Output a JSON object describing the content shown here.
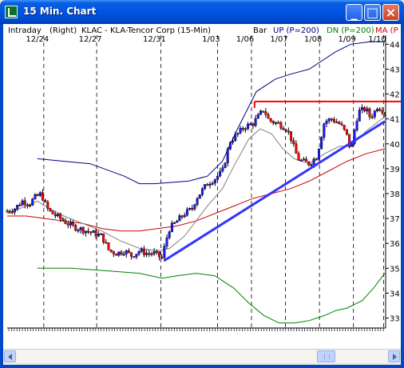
{
  "window": {
    "title": "15 Min. Chart",
    "minimize_label": "_",
    "maximize_label": "□",
    "close_label": "×"
  },
  "header": {
    "mode": "Intraday",
    "axis_side": "(Right)",
    "symbol": "KLAC - KLA-Tencor Corp (15-Min)",
    "chart_kind": "Bar",
    "up_label": "UP (P=200)",
    "dn_label": "DN (P=200)",
    "ma_label": "MA (P"
  },
  "colors": {
    "up_bar": "#1a1aff",
    "down_bar": "#ff0000",
    "upper_band": "#000080",
    "lower_band": "#008000",
    "ma": "#cc0000",
    "center": "#808080",
    "trendline": "#3333ff",
    "resistance": "#ff0000"
  },
  "chart_data": {
    "type": "candlestick",
    "date_labels": [
      "12/24",
      "12/27",
      "12/31",
      "1/03",
      "1/06",
      "1/07",
      "1/08",
      "1/09",
      "1/10"
    ],
    "y_ticks": [
      44,
      43,
      42,
      41,
      40,
      39,
      38,
      37,
      36,
      35,
      34,
      33
    ],
    "ylim": [
      32.6,
      44.3
    ],
    "x_range": [
      0,
      100
    ],
    "date_positions": [
      8,
      22,
      39,
      54,
      63,
      72,
      81,
      90,
      98
    ],
    "price_path": [
      [
        0,
        37.3
      ],
      [
        2,
        37.4
      ],
      [
        4,
        37.7
      ],
      [
        6,
        37.6
      ],
      [
        7,
        37.8
      ],
      [
        9,
        38.0
      ],
      [
        10,
        37.6
      ],
      [
        11,
        37.3
      ],
      [
        13,
        37.1
      ],
      [
        15,
        36.9
      ],
      [
        17,
        36.7
      ],
      [
        19,
        36.6
      ],
      [
        21,
        36.5
      ],
      [
        23,
        36.4
      ],
      [
        25,
        36.3
      ],
      [
        26,
        36.0
      ],
      [
        27,
        35.7
      ],
      [
        29,
        35.6
      ],
      [
        31,
        35.7
      ],
      [
        33,
        35.5
      ],
      [
        35,
        35.7
      ],
      [
        37,
        35.6
      ],
      [
        39,
        35.6
      ],
      [
        41,
        35.4
      ],
      [
        42,
        36.1
      ],
      [
        43,
        36.6
      ],
      [
        45,
        36.9
      ],
      [
        47,
        37.2
      ],
      [
        49,
        37.4
      ],
      [
        50,
        37.8
      ],
      [
        51,
        38.0
      ],
      [
        53,
        38.4
      ],
      [
        55,
        38.6
      ],
      [
        57,
        38.9
      ],
      [
        58,
        39.5
      ],
      [
        59,
        40.1
      ],
      [
        61,
        40.4
      ],
      [
        63,
        40.7
      ],
      [
        65,
        40.8
      ],
      [
        67,
        41.2
      ],
      [
        68,
        41.4
      ],
      [
        69,
        41.0
      ],
      [
        70,
        40.9
      ],
      [
        72,
        40.8
      ],
      [
        74,
        40.6
      ],
      [
        75,
        40.3
      ],
      [
        76,
        39.8
      ],
      [
        77,
        39.4
      ],
      [
        78,
        39.3
      ],
      [
        80,
        39.2
      ],
      [
        82,
        39.5
      ],
      [
        83,
        40.2
      ],
      [
        84,
        40.9
      ],
      [
        86,
        41.0
      ],
      [
        88,
        40.8
      ],
      [
        89,
        40.6
      ],
      [
        90,
        40.3
      ],
      [
        91,
        39.7
      ],
      [
        92,
        40.6
      ],
      [
        93,
        41.3
      ],
      [
        95,
        41.4
      ],
      [
        96,
        41.1
      ],
      [
        97,
        41.2
      ],
      [
        98,
        41.5
      ],
      [
        100,
        41.3
      ]
    ],
    "series": [
      {
        "name": "UP (P=200)",
        "points": [
          [
            8,
            39.4
          ],
          [
            22,
            39.2
          ],
          [
            31,
            38.7
          ],
          [
            35,
            38.4
          ],
          [
            39,
            38.4
          ],
          [
            48,
            38.5
          ],
          [
            53,
            38.7
          ],
          [
            57,
            39.3
          ],
          [
            61,
            40.6
          ],
          [
            66,
            42.1
          ],
          [
            71,
            42.6
          ],
          [
            75,
            42.8
          ],
          [
            80,
            43.0
          ],
          [
            84,
            43.4
          ],
          [
            87,
            43.7
          ],
          [
            91,
            44.0
          ],
          [
            96,
            44.1
          ],
          [
            100,
            44.1
          ]
        ]
      },
      {
        "name": "DN (P=200)",
        "points": [
          [
            8,
            35.0
          ],
          [
            17,
            35.0
          ],
          [
            26,
            34.9
          ],
          [
            35,
            34.8
          ],
          [
            41,
            34.6
          ],
          [
            45,
            34.7
          ],
          [
            50,
            34.8
          ],
          [
            55,
            34.7
          ],
          [
            60,
            34.2
          ],
          [
            64,
            33.6
          ],
          [
            68,
            33.1
          ],
          [
            72,
            32.8
          ],
          [
            76,
            32.8
          ],
          [
            80,
            32.9
          ],
          [
            84,
            33.1
          ],
          [
            87,
            33.3
          ],
          [
            90,
            33.4
          ],
          [
            94,
            33.7
          ],
          [
            97,
            34.2
          ],
          [
            100,
            34.8
          ]
        ]
      },
      {
        "name": "MA (P",
        "points": [
          [
            0,
            37.1
          ],
          [
            5,
            37.1
          ],
          [
            10,
            37.0
          ],
          [
            15,
            36.9
          ],
          [
            20,
            36.8
          ],
          [
            25,
            36.6
          ],
          [
            30,
            36.5
          ],
          [
            35,
            36.5
          ],
          [
            40,
            36.6
          ],
          [
            45,
            36.7
          ],
          [
            50,
            36.9
          ],
          [
            55,
            37.2
          ],
          [
            60,
            37.5
          ],
          [
            65,
            37.8
          ],
          [
            70,
            38.0
          ],
          [
            75,
            38.2
          ],
          [
            80,
            38.5
          ],
          [
            85,
            38.9
          ],
          [
            90,
            39.3
          ],
          [
            95,
            39.6
          ],
          [
            100,
            39.8
          ]
        ]
      },
      {
        "name": "Center",
        "points": [
          [
            0,
            37.2
          ],
          [
            5,
            37.5
          ],
          [
            8,
            37.7
          ],
          [
            10,
            37.5
          ],
          [
            15,
            37.1
          ],
          [
            20,
            36.8
          ],
          [
            25,
            36.5
          ],
          [
            30,
            36.1
          ],
          [
            35,
            35.8
          ],
          [
            40,
            35.7
          ],
          [
            43,
            35.8
          ],
          [
            47,
            36.3
          ],
          [
            50,
            36.9
          ],
          [
            53,
            37.5
          ],
          [
            57,
            38.2
          ],
          [
            60,
            39.1
          ],
          [
            64,
            40.2
          ],
          [
            67,
            40.6
          ],
          [
            70,
            40.4
          ],
          [
            73,
            39.8
          ],
          [
            76,
            39.4
          ],
          [
            80,
            39.2
          ],
          [
            84,
            39.6
          ],
          [
            88,
            39.9
          ],
          [
            91,
            39.9
          ],
          [
            95,
            40.5
          ],
          [
            100,
            41.1
          ]
        ]
      }
    ],
    "trendline": [
      [
        41.5,
        35.3
      ],
      [
        100,
        40.9
      ]
    ],
    "resistance": {
      "x_start": 65.5,
      "value": 41.7
    }
  }
}
